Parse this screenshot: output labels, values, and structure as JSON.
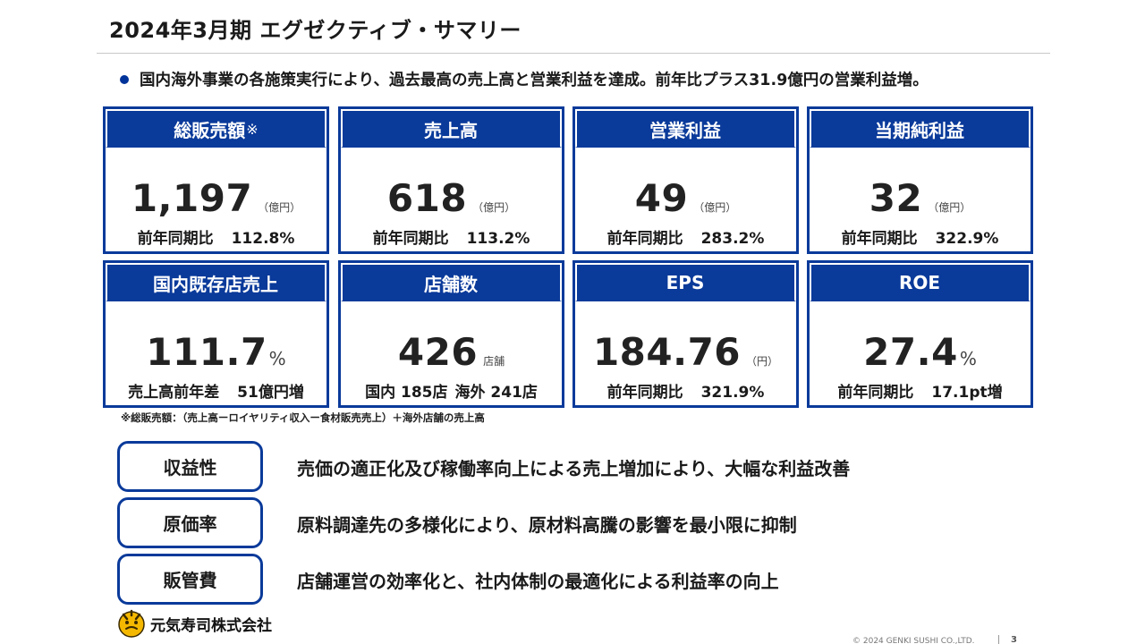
{
  "title": "2024年3月期 エグゼクティブ・サマリー",
  "summary": "国内海外事業の各施策実行により、過去最高の売上高と営業利益を達成。前年比プラス31.9億円の営業利益増。",
  "colors": {
    "brand_blue": "#0a3a9a"
  },
  "cards": [
    {
      "header": "総販売額",
      "header_mark": "※",
      "value": "1,197",
      "unit": "（億円）",
      "sub_label": "前年同期比",
      "sub_value": "112.8%"
    },
    {
      "header": "売上高",
      "header_mark": "",
      "value": "618",
      "unit": "（億円）",
      "sub_label": "前年同期比",
      "sub_value": "113.2%"
    },
    {
      "header": "営業利益",
      "header_mark": "",
      "value": "49",
      "unit": "（億円）",
      "sub_label": "前年同期比",
      "sub_value": "283.2%"
    },
    {
      "header": "当期純利益",
      "header_mark": "",
      "value": "32",
      "unit": "（億円）",
      "sub_label": "前年同期比",
      "sub_value": "322.9%"
    },
    {
      "header": "国内既存店売上",
      "header_mark": "",
      "value": "111.7",
      "unit": "%",
      "sub_label": "売上高前年差",
      "sub_value": "51億円増"
    },
    {
      "header": "店舗数",
      "header_mark": "",
      "value": "426",
      "unit": "店舗",
      "sub_label": "国内 185店",
      "sub_value": "海外 241店"
    },
    {
      "header": "EPS",
      "header_mark": "",
      "value": "184.76",
      "unit": "（円）",
      "sub_label": "前年同期比",
      "sub_value": "321.9%"
    },
    {
      "header": "ROE",
      "header_mark": "",
      "value": "27.4",
      "unit": "%",
      "sub_label": "前年同期比",
      "sub_value": "17.1pt増"
    }
  ],
  "footnote": "※総販売額：（売上高ーロイヤリティ収入ー食材販売売上）＋海外店舗の売上高",
  "points": [
    {
      "label": "収益性",
      "text": "売価の適正化及び稼働率向上による売上増加により、大幅な利益改善"
    },
    {
      "label": "原価率",
      "text": "原料調達先の多様化により、原材料高騰の影響を最小限に抑制"
    },
    {
      "label": "販管費",
      "text": "店舗運営の効率化と、社内体制の最適化による利益率の向上"
    }
  ],
  "company_name": "元気寿司株式会社",
  "logo_icon": "genki-sushi-logo-icon",
  "copyright": "© 2024 GENKI SUSHI CO.,LTD.",
  "page_number": "3"
}
